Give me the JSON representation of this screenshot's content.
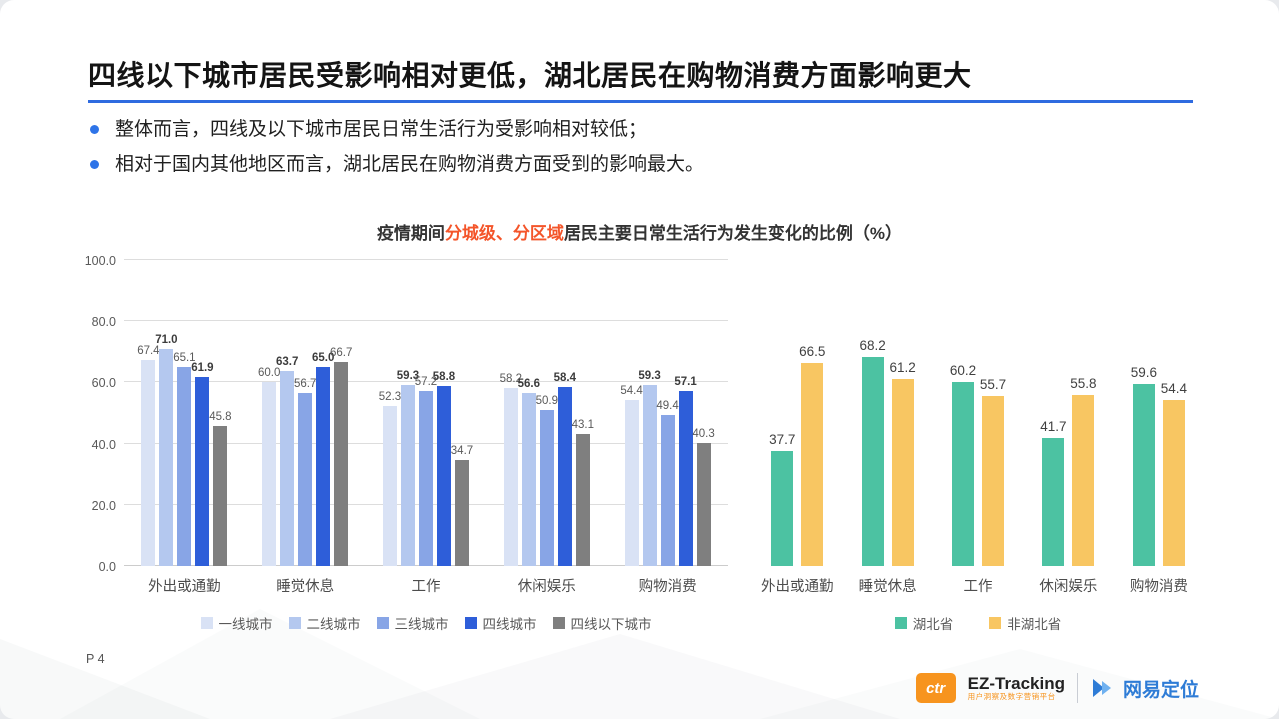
{
  "slide": {
    "title": "四线以下城市居民受影响相对更低，湖北居民在购物消费方面影响更大",
    "accent_color": "#2f6be0",
    "bullets": [
      "整体而言，四线及以下城市居民日常生活行为受影响相对较低；",
      "相对于国内其他地区而言，湖北居民在购物消费方面受到的影响最大。"
    ],
    "page_number": "P 4"
  },
  "chart_title": {
    "prefix": "疫情期间",
    "highlight": "分城级、分区域",
    "suffix": "居民主要日常生活行为发生变化的比例（%）",
    "highlight_color": "#f4552a"
  },
  "chart_data": [
    {
      "type": "bar",
      "title": "分城级居民主要日常生活行为发生变化的比例",
      "categories": [
        "外出或通勤",
        "睡觉休息",
        "工作",
        "休闲娱乐",
        "购物消费"
      ],
      "series": [
        {
          "name": "一线城市",
          "color": "#d9e2f5",
          "bold_labels": false,
          "values": [
            67.4,
            60.0,
            52.3,
            58.2,
            54.4
          ]
        },
        {
          "name": "二线城市",
          "color": "#b4c8ef",
          "bold_labels": true,
          "values": [
            71.0,
            63.7,
            59.3,
            56.6,
            59.3
          ]
        },
        {
          "name": "三线城市",
          "color": "#88a5e6",
          "bold_labels": false,
          "values": [
            65.1,
            56.7,
            57.2,
            50.9,
            49.4
          ]
        },
        {
          "name": "四线城市",
          "color": "#2e5ed9",
          "bold_labels": true,
          "values": [
            61.9,
            65.0,
            58.8,
            58.4,
            57.1
          ]
        },
        {
          "name": "四线以下城市",
          "color": "#7f7f7f",
          "bold_labels": false,
          "values": [
            45.8,
            66.7,
            34.7,
            43.1,
            40.3
          ]
        }
      ],
      "ylim": [
        0,
        100
      ],
      "yticks": [
        0,
        20,
        40,
        60,
        80,
        100
      ],
      "grid": true,
      "legend_position": "bottom"
    },
    {
      "type": "bar",
      "title": "分区域居民主要日常生活行为发生变化的比例",
      "categories": [
        "外出或通勤",
        "睡觉休息",
        "工作",
        "休闲娱乐",
        "购物消费"
      ],
      "series": [
        {
          "name": "湖北省",
          "color": "#4cc2a2",
          "bold_labels": false,
          "values": [
            37.7,
            68.2,
            60.2,
            41.7,
            59.6
          ]
        },
        {
          "name": "非湖北省",
          "color": "#f8c662",
          "bold_labels": false,
          "values": [
            66.5,
            61.2,
            55.7,
            55.8,
            54.4
          ]
        }
      ],
      "ylim": [
        0,
        100
      ],
      "yticks": [],
      "grid": false,
      "legend_position": "bottom"
    }
  ],
  "footer": {
    "ctr_logo": "ctr",
    "ez_name": "EZ-Tracking",
    "ez_sub": "用户洞察及数字营销平台",
    "netease_name": "网易定位"
  }
}
